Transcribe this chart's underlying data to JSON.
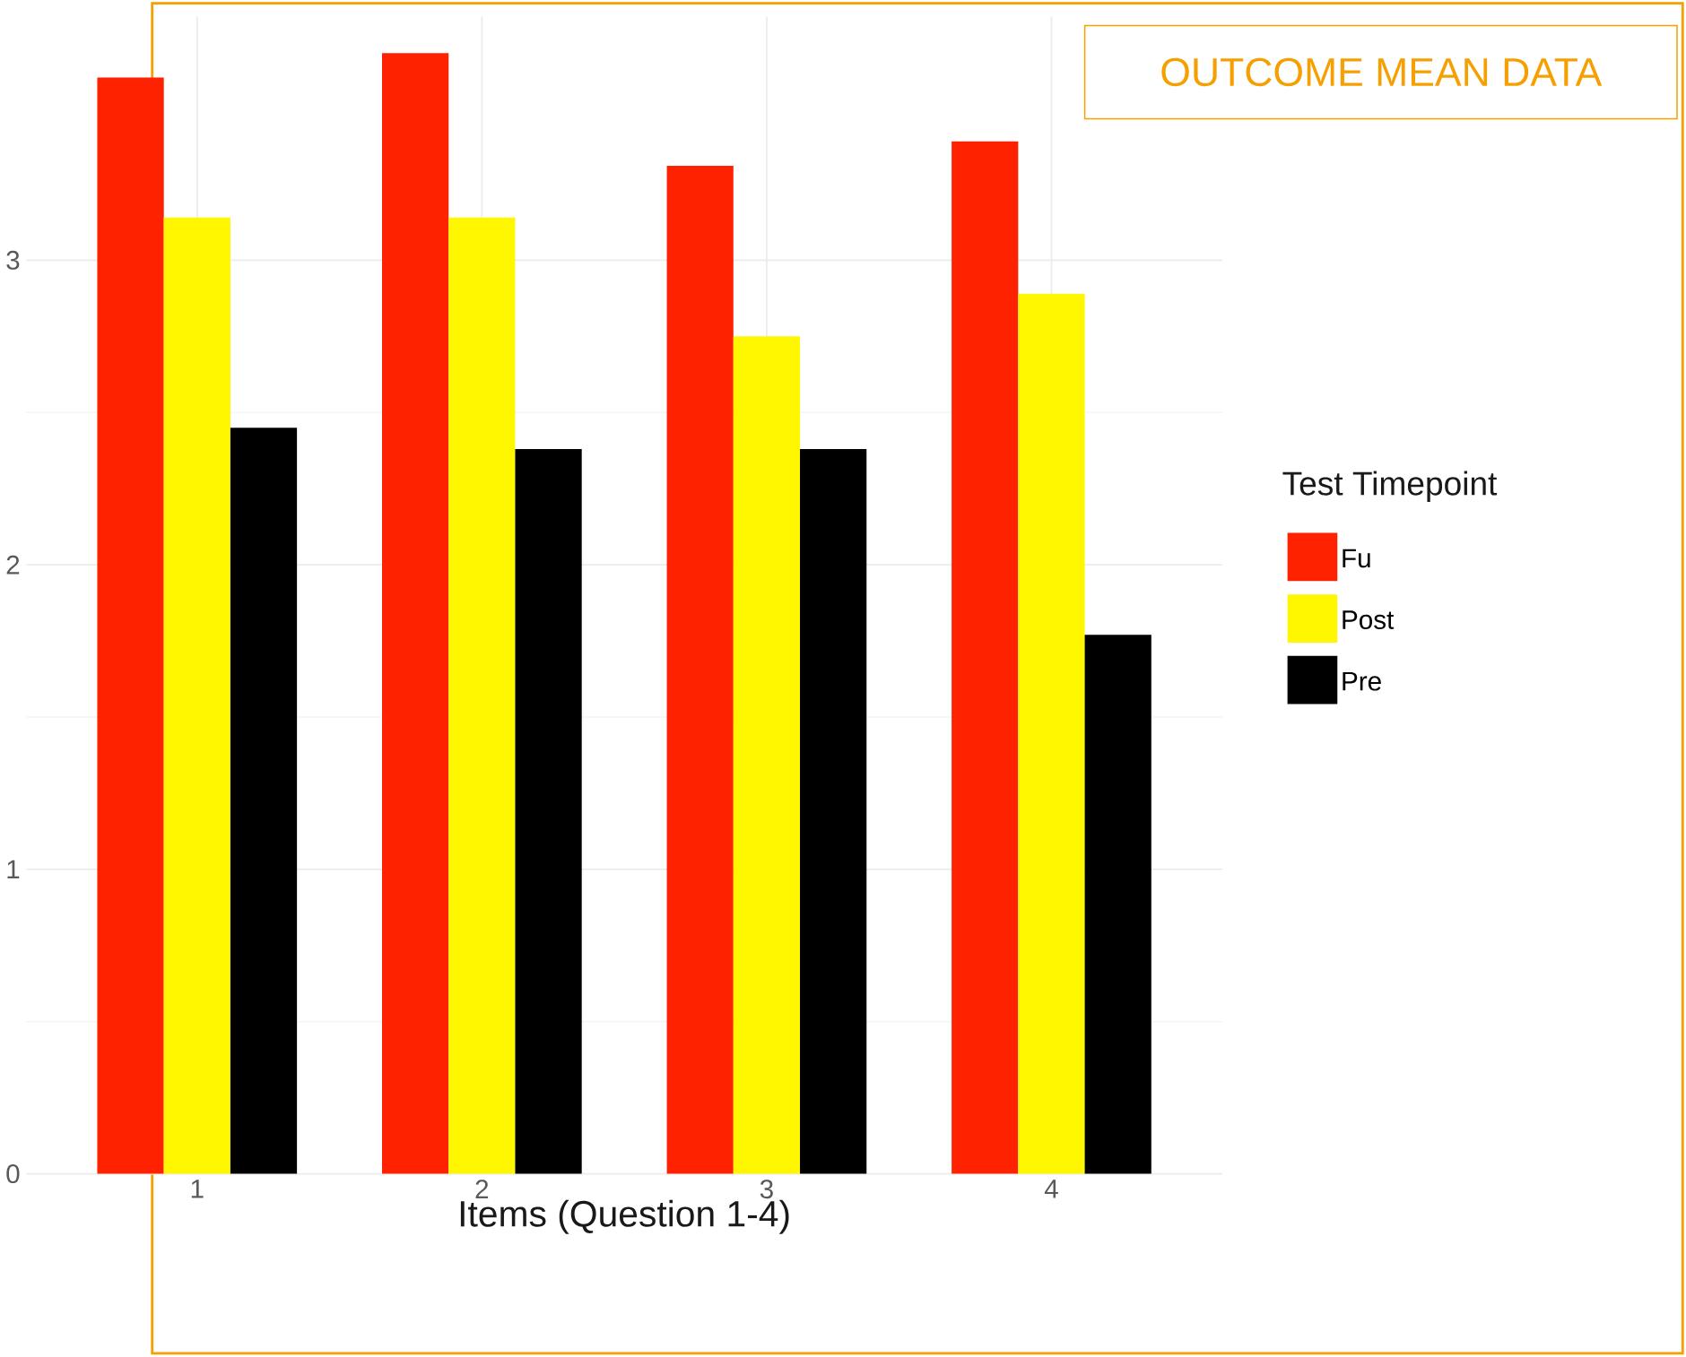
{
  "chart_data": {
    "type": "bar",
    "title": "OUTCOME MEAN DATA",
    "xlabel": "Items (Question 1-4)",
    "legend_title": "Test Timepoint",
    "categories": [
      "1",
      "2",
      "3",
      "4"
    ],
    "series": [
      {
        "name": "Fu",
        "color": "#ff2200",
        "values": [
          3.6,
          3.68,
          3.31,
          3.39
        ]
      },
      {
        "name": "Post",
        "color": "#fff700",
        "values": [
          3.14,
          3.14,
          2.75,
          2.89
        ]
      },
      {
        "name": "Pre",
        "color": "#000000",
        "values": [
          2.45,
          2.38,
          2.38,
          1.77
        ]
      }
    ],
    "ylim": [
      0,
      3.8
    ],
    "yticks": [
      0,
      1,
      2,
      3
    ],
    "grid": true,
    "legend": "right"
  }
}
